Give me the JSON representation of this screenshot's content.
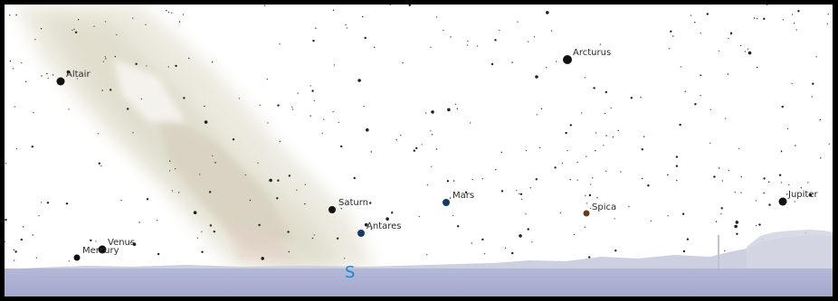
{
  "view": {
    "compass_direction": "S",
    "direction_color": "#1f86c8",
    "sky_color": "#ffffff",
    "ground_color": "#a8acd0"
  },
  "objects": [
    {
      "name": "Altair",
      "kind": "star",
      "color": "#111111"
    },
    {
      "name": "Arcturus",
      "kind": "star",
      "color": "#111111"
    },
    {
      "name": "Saturn",
      "kind": "planet",
      "color": "#111111"
    },
    {
      "name": "Mars",
      "kind": "planet",
      "color": "#1a3a66"
    },
    {
      "name": "Antares",
      "kind": "star",
      "color": "#1a3a66"
    },
    {
      "name": "Spica",
      "kind": "star",
      "color": "#6a3a1a"
    },
    {
      "name": "Jupiter",
      "kind": "planet",
      "color": "#111111"
    },
    {
      "name": "Venus",
      "kind": "planet",
      "color": "#111111"
    },
    {
      "name": "Mercury",
      "kind": "planet",
      "color": "#111111"
    }
  ]
}
